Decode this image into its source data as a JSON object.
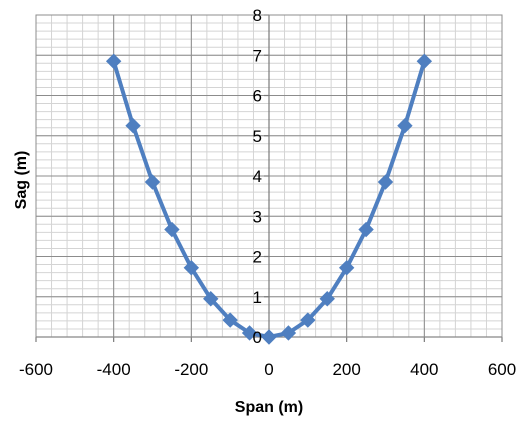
{
  "chart_data": {
    "type": "scatter",
    "title": "",
    "xlabel": "Span (m)",
    "ylabel": "Sag (m)",
    "xlim": [
      -600,
      600
    ],
    "ylim": [
      0,
      8
    ],
    "x_ticks": [
      -600,
      -400,
      -200,
      0,
      200,
      400,
      600
    ],
    "y_ticks": [
      0,
      1,
      2,
      3,
      4,
      5,
      6,
      7,
      8
    ],
    "x_tick_labels": [
      "-600",
      "-400",
      "-200",
      "0",
      "200",
      "400",
      "600"
    ],
    "y_tick_labels": [
      "0",
      "1",
      "2",
      "3",
      "4",
      "5",
      "6",
      "7",
      "8"
    ],
    "grid": true,
    "minor_grid": true,
    "legend": "none",
    "marker": "diamond",
    "line": "straight",
    "series": [
      {
        "color": "#4f7fc0",
        "x": [
          -400,
          -350,
          -300,
          -250,
          -200,
          -150,
          -100,
          -50,
          0,
          50,
          100,
          150,
          200,
          250,
          300,
          350,
          400
        ],
        "y": [
          6.85,
          5.25,
          3.85,
          2.67,
          1.72,
          0.95,
          0.42,
          0.1,
          0.0,
          0.1,
          0.42,
          0.95,
          1.72,
          2.67,
          3.85,
          5.25,
          6.85
        ]
      }
    ]
  }
}
